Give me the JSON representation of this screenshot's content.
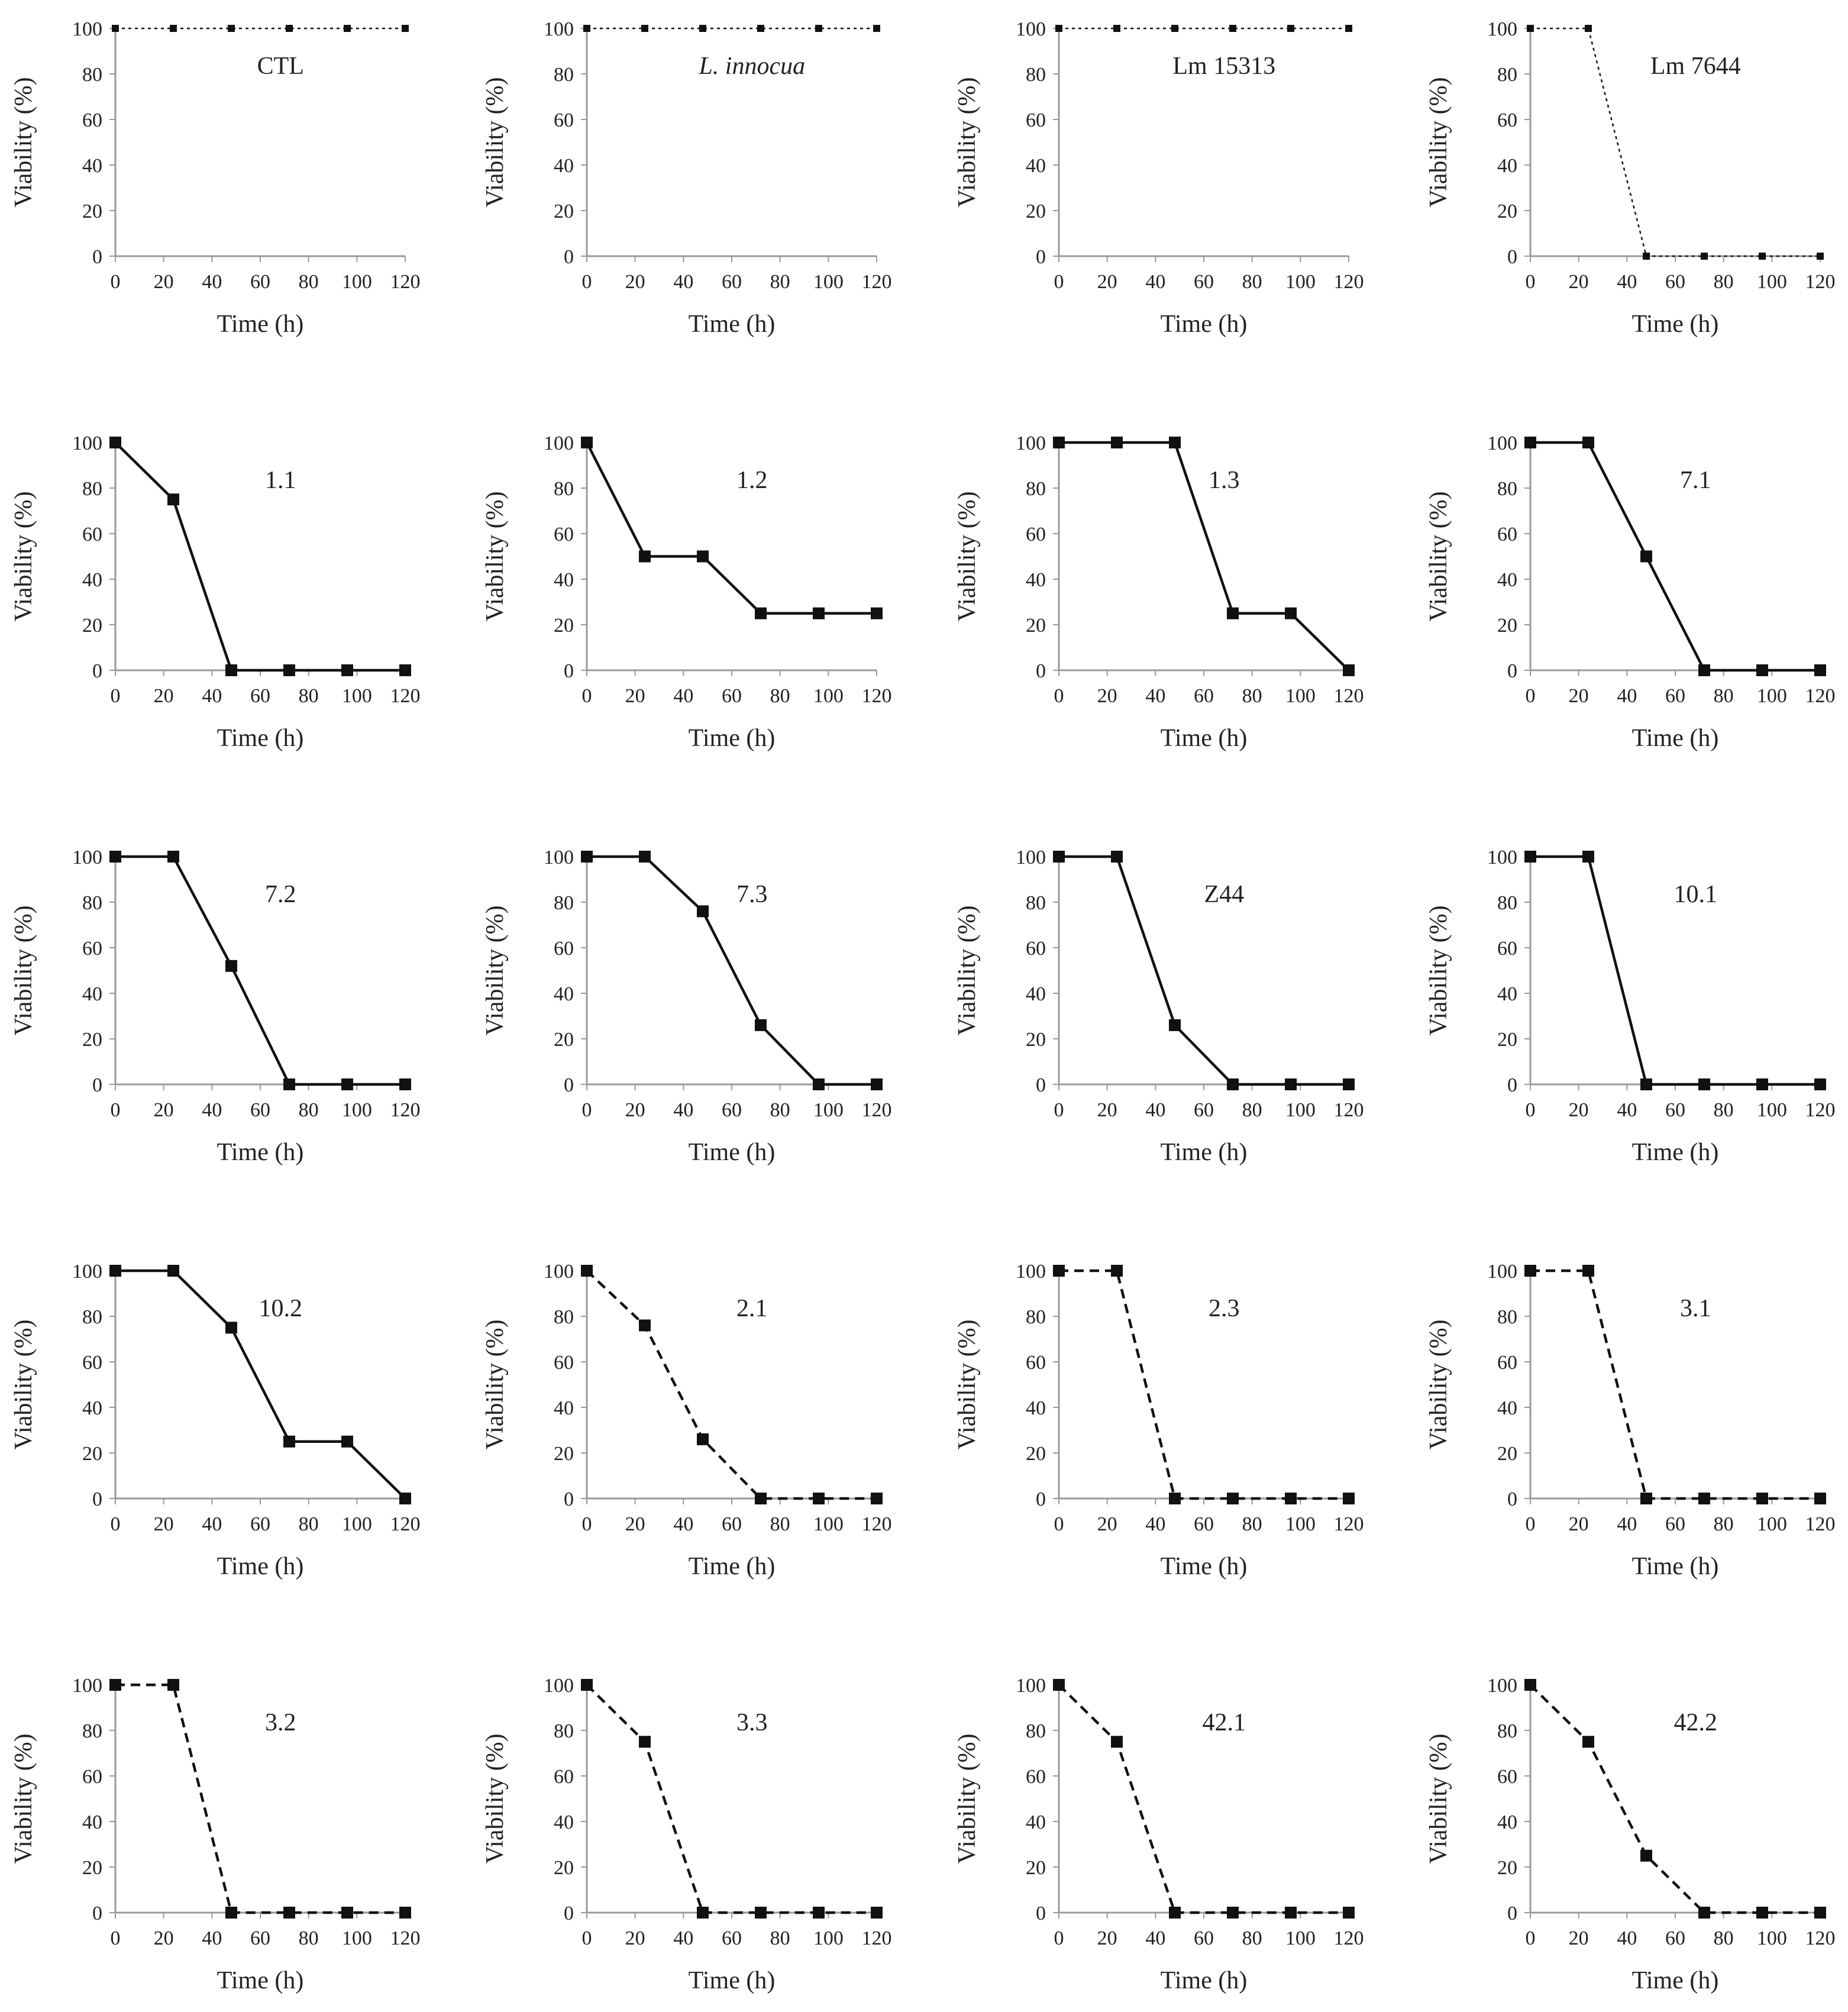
{
  "figure": {
    "xlabel": "Time (h)",
    "ylabel": "Viability (%)",
    "x_ticks": [
      "0",
      "20",
      "40",
      "60",
      "80",
      "100",
      "120"
    ],
    "y_ticks": [
      "0",
      "20",
      "40",
      "60",
      "80",
      "100"
    ]
  },
  "chart_data": [
    {
      "type": "line",
      "label": "CTL",
      "italic": false,
      "style": "dotted",
      "x": [
        0,
        24,
        48,
        72,
        96,
        120
      ],
      "y": [
        100,
        100,
        100,
        100,
        100,
        100
      ],
      "xlim": [
        0,
        120
      ],
      "ylim": [
        0,
        100
      ]
    },
    {
      "type": "line",
      "label": "L. innocua",
      "italic": true,
      "style": "dotted",
      "x": [
        0,
        24,
        48,
        72,
        96,
        120
      ],
      "y": [
        100,
        100,
        100,
        100,
        100,
        100
      ],
      "xlim": [
        0,
        120
      ],
      "ylim": [
        0,
        100
      ]
    },
    {
      "type": "line",
      "label": "Lm 15313",
      "italic": false,
      "style": "dotted",
      "x": [
        0,
        24,
        48,
        72,
        96,
        120
      ],
      "y": [
        100,
        100,
        100,
        100,
        100,
        100
      ],
      "xlim": [
        0,
        120
      ],
      "ylim": [
        0,
        100
      ]
    },
    {
      "type": "line",
      "label": "Lm 7644",
      "italic": false,
      "style": "dotted",
      "x": [
        0,
        24,
        48,
        72,
        96,
        120
      ],
      "y": [
        100,
        100,
        0,
        0,
        0,
        0
      ],
      "xlim": [
        0,
        120
      ],
      "ylim": [
        0,
        100
      ]
    },
    {
      "type": "line",
      "label": "1.1",
      "italic": false,
      "style": "solid",
      "x": [
        0,
        24,
        48,
        72,
        96,
        120
      ],
      "y": [
        100,
        75,
        0,
        0,
        0,
        0
      ],
      "xlim": [
        0,
        120
      ],
      "ylim": [
        0,
        100
      ]
    },
    {
      "type": "line",
      "label": "1.2",
      "italic": false,
      "style": "solid",
      "x": [
        0,
        24,
        48,
        72,
        96,
        120
      ],
      "y": [
        100,
        50,
        50,
        25,
        25,
        25
      ],
      "xlim": [
        0,
        120
      ],
      "ylim": [
        0,
        100
      ]
    },
    {
      "type": "line",
      "label": "1.3",
      "italic": false,
      "style": "solid",
      "x": [
        0,
        24,
        48,
        72,
        96,
        120
      ],
      "y": [
        100,
        100,
        100,
        25,
        25,
        0
      ],
      "xlim": [
        0,
        120
      ],
      "ylim": [
        0,
        100
      ]
    },
    {
      "type": "line",
      "label": "7.1",
      "italic": false,
      "style": "solid",
      "x": [
        0,
        24,
        48,
        72,
        96,
        120
      ],
      "y": [
        100,
        100,
        50,
        0,
        0,
        0
      ],
      "xlim": [
        0,
        120
      ],
      "ylim": [
        0,
        100
      ]
    },
    {
      "type": "line",
      "label": "7.2",
      "italic": false,
      "style": "solid",
      "x": [
        0,
        24,
        48,
        72,
        96,
        120
      ],
      "y": [
        100,
        100,
        52,
        0,
        0,
        0
      ],
      "xlim": [
        0,
        120
      ],
      "ylim": [
        0,
        100
      ]
    },
    {
      "type": "line",
      "label": "7.3",
      "italic": false,
      "style": "solid",
      "x": [
        0,
        24,
        48,
        72,
        96,
        120
      ],
      "y": [
        100,
        100,
        76,
        26,
        0,
        0
      ],
      "xlim": [
        0,
        120
      ],
      "ylim": [
        0,
        100
      ]
    },
    {
      "type": "line",
      "label": "Z44",
      "italic": false,
      "style": "solid",
      "x": [
        0,
        24,
        48,
        72,
        96,
        120
      ],
      "y": [
        100,
        100,
        26,
        0,
        0,
        0
      ],
      "xlim": [
        0,
        120
      ],
      "ylim": [
        0,
        100
      ]
    },
    {
      "type": "line",
      "label": "10.1",
      "italic": false,
      "style": "solid",
      "x": [
        0,
        24,
        48,
        72,
        96,
        120
      ],
      "y": [
        100,
        100,
        0,
        0,
        0,
        0
      ],
      "xlim": [
        0,
        120
      ],
      "ylim": [
        0,
        100
      ]
    },
    {
      "type": "line",
      "label": "10.2",
      "italic": false,
      "style": "solid",
      "x": [
        0,
        24,
        48,
        72,
        96,
        120
      ],
      "y": [
        100,
        100,
        75,
        25,
        25,
        0
      ],
      "xlim": [
        0,
        120
      ],
      "ylim": [
        0,
        100
      ]
    },
    {
      "type": "line",
      "label": "2.1",
      "italic": false,
      "style": "dashed",
      "x": [
        0,
        24,
        48,
        72,
        96,
        120
      ],
      "y": [
        100,
        76,
        26,
        0,
        0,
        0
      ],
      "xlim": [
        0,
        120
      ],
      "ylim": [
        0,
        100
      ]
    },
    {
      "type": "line",
      "label": "2.3",
      "italic": false,
      "style": "dashed",
      "x": [
        0,
        24,
        48,
        72,
        96,
        120
      ],
      "y": [
        100,
        100,
        0,
        0,
        0,
        0
      ],
      "xlim": [
        0,
        120
      ],
      "ylim": [
        0,
        100
      ]
    },
    {
      "type": "line",
      "label": "3.1",
      "italic": false,
      "style": "dashed",
      "x": [
        0,
        24,
        48,
        72,
        96,
        120
      ],
      "y": [
        100,
        100,
        0,
        0,
        0,
        0
      ],
      "xlim": [
        0,
        120
      ],
      "ylim": [
        0,
        100
      ]
    },
    {
      "type": "line",
      "label": "3.2",
      "italic": false,
      "style": "dashed",
      "x": [
        0,
        24,
        48,
        72,
        96,
        120
      ],
      "y": [
        100,
        100,
        0,
        0,
        0,
        0
      ],
      "xlim": [
        0,
        120
      ],
      "ylim": [
        0,
        100
      ]
    },
    {
      "type": "line",
      "label": "3.3",
      "italic": false,
      "style": "dashed",
      "x": [
        0,
        24,
        48,
        72,
        96,
        120
      ],
      "y": [
        100,
        75,
        0,
        0,
        0,
        0
      ],
      "xlim": [
        0,
        120
      ],
      "ylim": [
        0,
        100
      ]
    },
    {
      "type": "line",
      "label": "42.1",
      "italic": false,
      "style": "dashed",
      "x": [
        0,
        24,
        48,
        72,
        96,
        120
      ],
      "y": [
        100,
        75,
        0,
        0,
        0,
        0
      ],
      "xlim": [
        0,
        120
      ],
      "ylim": [
        0,
        100
      ]
    },
    {
      "type": "line",
      "label": "42.2",
      "italic": false,
      "style": "dashed",
      "x": [
        0,
        24,
        48,
        72,
        96,
        120
      ],
      "y": [
        100,
        75,
        25,
        0,
        0,
        0
      ],
      "xlim": [
        0,
        120
      ],
      "ylim": [
        0,
        100
      ]
    }
  ],
  "colors": {
    "line": "#111111",
    "axis": "#999999",
    "text": "#222222"
  }
}
